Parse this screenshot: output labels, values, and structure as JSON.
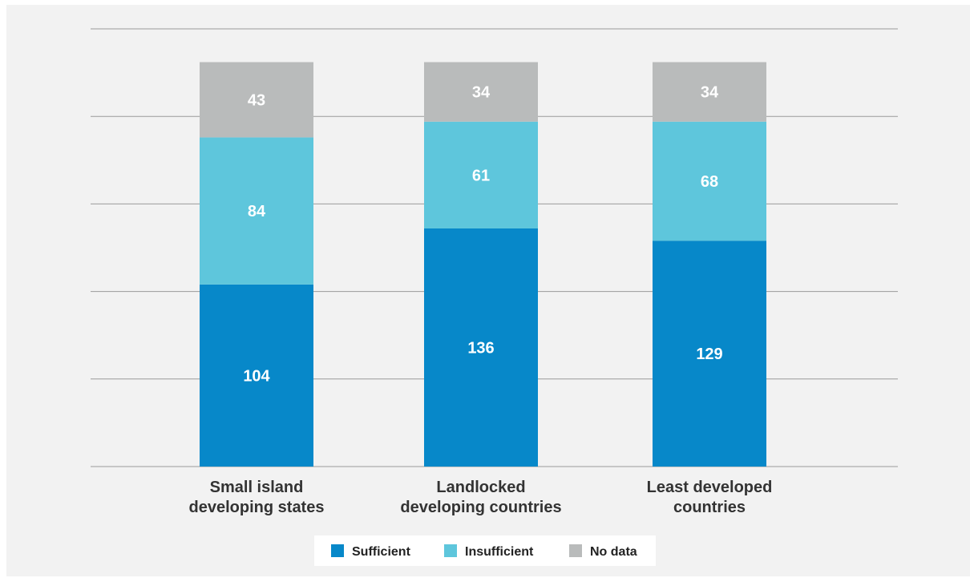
{
  "chart_data": {
    "type": "bar",
    "stacked": true,
    "categories": [
      [
        "Small island",
        "developing states"
      ],
      [
        "Landlocked",
        "developing countries"
      ],
      [
        "Least developed",
        "countries"
      ]
    ],
    "series": [
      {
        "name": "Sufficient",
        "color": "#0788c9",
        "values": [
          104,
          136,
          129
        ]
      },
      {
        "name": "Insufficient",
        "color": "#5ec6dc",
        "values": [
          84,
          61,
          68
        ]
      },
      {
        "name": "No data",
        "color": "#b9bbbb",
        "values": [
          43,
          34,
          34
        ]
      }
    ],
    "ylim": [
      0,
      250
    ],
    "grid": true,
    "legend": "bottom-center",
    "title": "",
    "xlabel": "",
    "ylabel": ""
  }
}
